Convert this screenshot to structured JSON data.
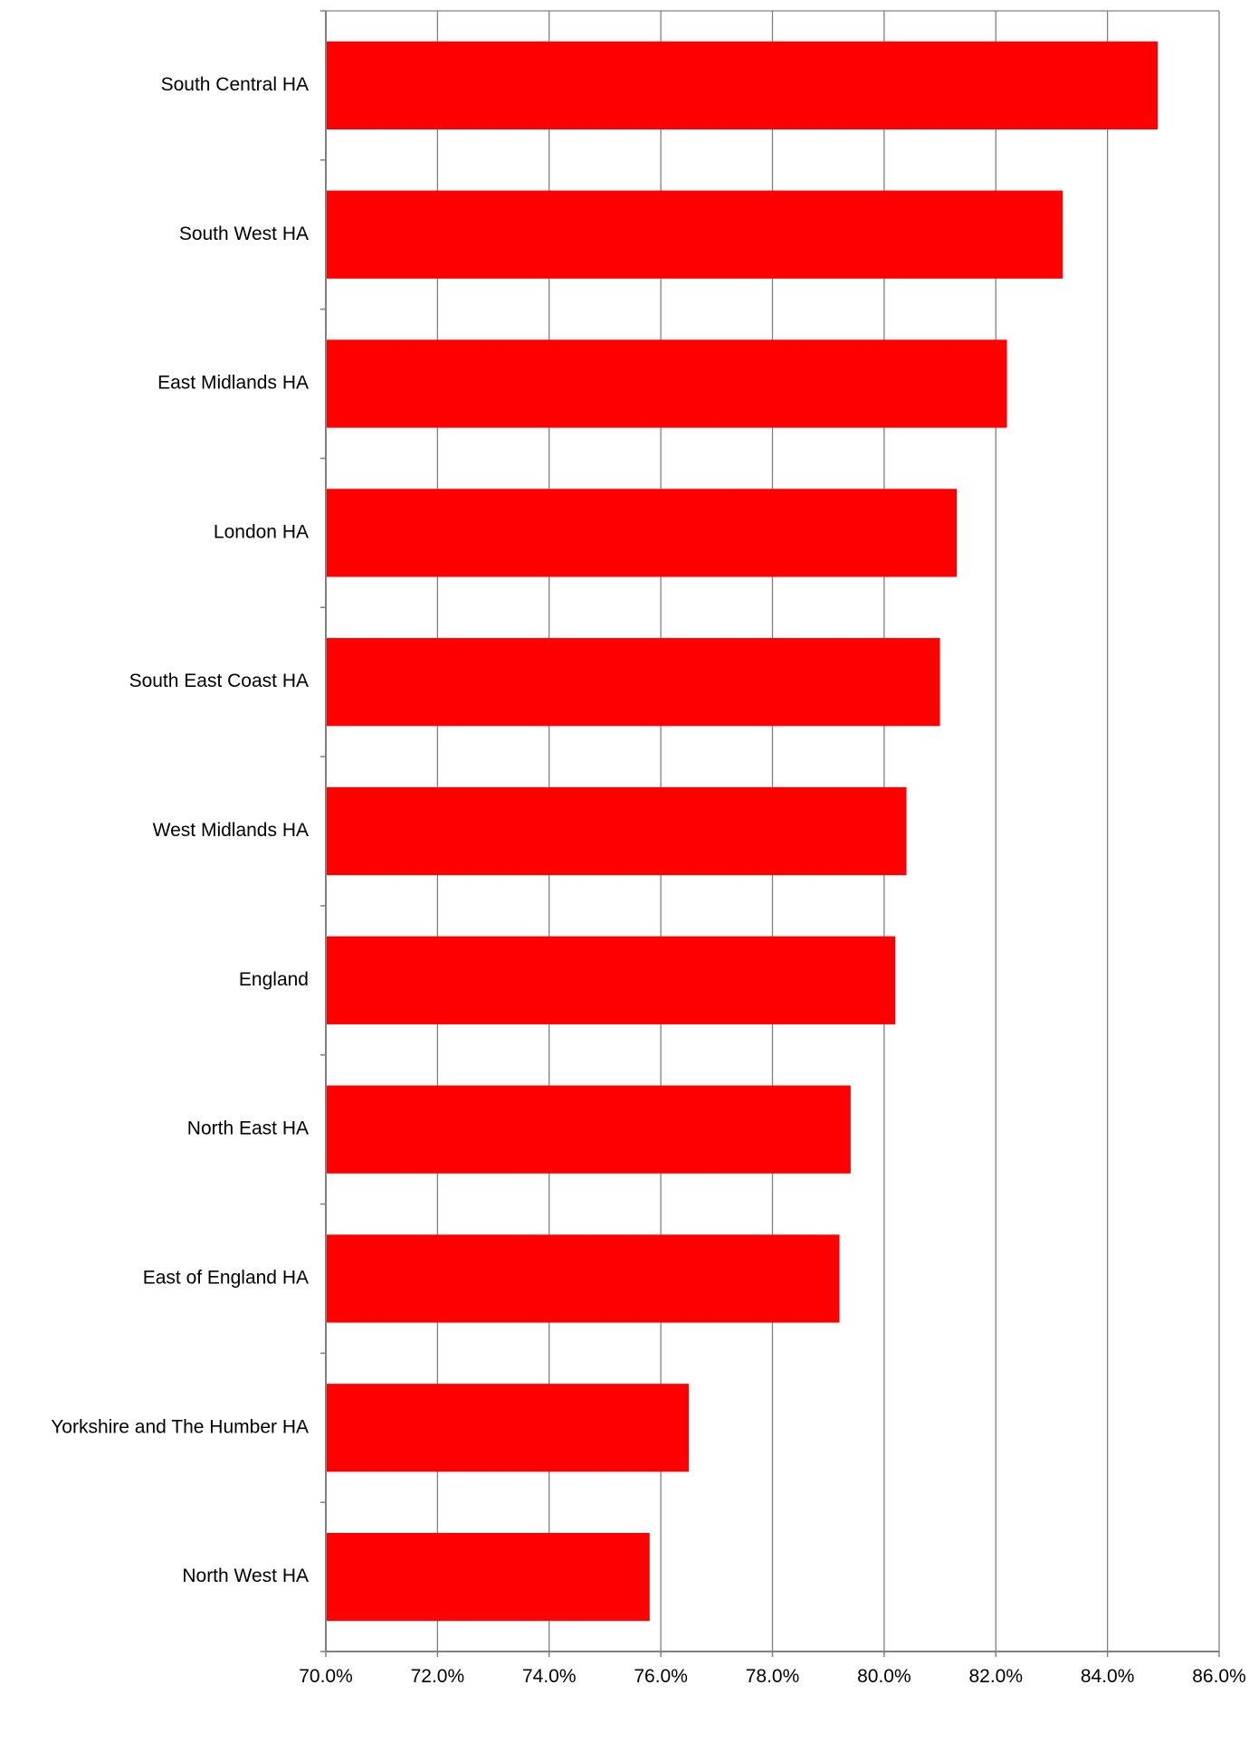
{
  "chart_data": {
    "type": "bar",
    "orientation": "horizontal",
    "title": "",
    "xlabel": "",
    "ylabel": "",
    "categories": [
      "South Central HA",
      "South West HA",
      "East Midlands HA",
      "London HA",
      "South East Coast HA",
      "West Midlands HA",
      "England",
      "North East HA",
      "East of England HA",
      "Yorkshire and The Humber HA",
      "North West HA"
    ],
    "values": [
      84.9,
      83.2,
      82.2,
      81.3,
      81.0,
      80.4,
      80.2,
      79.4,
      79.2,
      76.5,
      75.8
    ],
    "xlim": [
      70,
      86
    ],
    "ticks": [
      70,
      72,
      74,
      76,
      78,
      80,
      82,
      84,
      86
    ],
    "tick_labels": [
      "70.0%",
      "72.0%",
      "74.0%",
      "76.0%",
      "78.0%",
      "80.0%",
      "82.0%",
      "84.0%",
      "86.0%"
    ],
    "grid": true,
    "legend": "none",
    "colors": {
      "bar": "#ff0000",
      "grid": "#808080",
      "axis": "#808080",
      "text": "#000000"
    }
  }
}
